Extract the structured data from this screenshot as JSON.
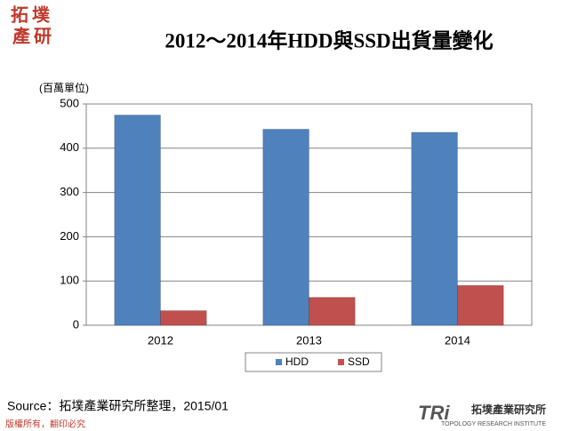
{
  "chart_data": {
    "type": "bar",
    "title": "2012～2014年HDD與SSD出貨量變化",
    "y_label": "(百萬單位)",
    "categories": [
      "2012",
      "2013",
      "2014"
    ],
    "series": [
      {
        "name": "HDD",
        "color": "#4f81bd",
        "values": [
          475,
          443,
          436
        ]
      },
      {
        "name": "SSD",
        "color": "#c0504d",
        "values": [
          33,
          63,
          90
        ]
      }
    ],
    "ylim": [
      0,
      500
    ],
    "yticks": [
      0,
      100,
      200,
      300,
      400,
      500
    ],
    "grid": true,
    "legend": "bottom"
  },
  "source": "Source：拓墣產業研究所整理，2015/01",
  "copyright": "版權所有，翻印必究",
  "logo": {
    "top": [
      "拓",
      "墣",
      "產",
      "研"
    ],
    "mark": "TRi",
    "name": "拓墣產業研究所",
    "english": "TOPOLOGY RESEARCH INSTITUTE"
  }
}
